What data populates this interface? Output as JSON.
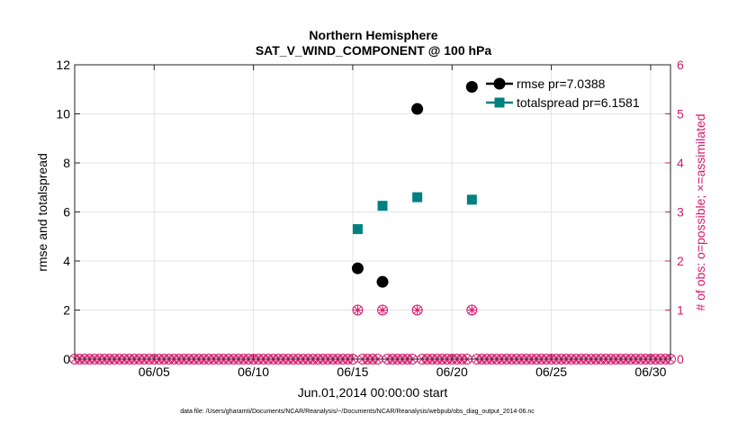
{
  "chart_data": {
    "type": "scatter",
    "title": "Northern Hemisphere",
    "subtitle": "SAT_V_WIND_COMPONENT @ 100 hPa",
    "xlabel": "Jun.01,2014 00:00:00 start",
    "ylabel": "rmse and totalspread",
    "y2label": "# of obs: o=possible; ×=assimilated",
    "footnote": "data file: /Users/gharamti/Documents/NCAR/Reanalysis/~/Documents/NCAR/Reanalysis/webpub/obs_diag_output_2014-06.nc",
    "xlim": [
      1,
      31
    ],
    "ylim": [
      0,
      12
    ],
    "y2lim": [
      0,
      6
    ],
    "x_ticks": [
      5,
      10,
      15,
      20,
      25,
      30
    ],
    "x_tick_labels": [
      "06/05",
      "06/10",
      "06/15",
      "06/20",
      "06/25",
      "06/30"
    ],
    "y_ticks": [
      0,
      2,
      4,
      6,
      8,
      10,
      12
    ],
    "y2_ticks": [
      0,
      1,
      2,
      3,
      4,
      5,
      6
    ],
    "grid": true,
    "legend_position": "top-right",
    "colors": {
      "rmse": "#000000",
      "totalspread": "#008080",
      "obs": "#d6196b",
      "grid": "#e3e3e3",
      "axis": "#222222"
    },
    "series": [
      {
        "name": "rmse pr=7.0388",
        "key": "rmse",
        "x": [
          15.25,
          16.5,
          18.25,
          21.0
        ],
        "values": [
          3.7,
          3.15,
          10.2,
          11.1
        ]
      },
      {
        "name": "totalspread pr=6.1581",
        "key": "totalspread",
        "x": [
          15.25,
          16.5,
          18.25,
          21.0
        ],
        "values": [
          5.3,
          6.25,
          6.6,
          6.5
        ]
      }
    ],
    "obs_counts": {
      "axis": "right",
      "x_start": 1.0,
      "x_end": 31.0,
      "step": 0.25,
      "nonzero_x": [
        15.25,
        16.5,
        18.25,
        21.0
      ],
      "nonzero_possible": [
        1,
        1,
        1,
        1
      ],
      "nonzero_assimilated": [
        1,
        1,
        1,
        1
      ]
    }
  }
}
